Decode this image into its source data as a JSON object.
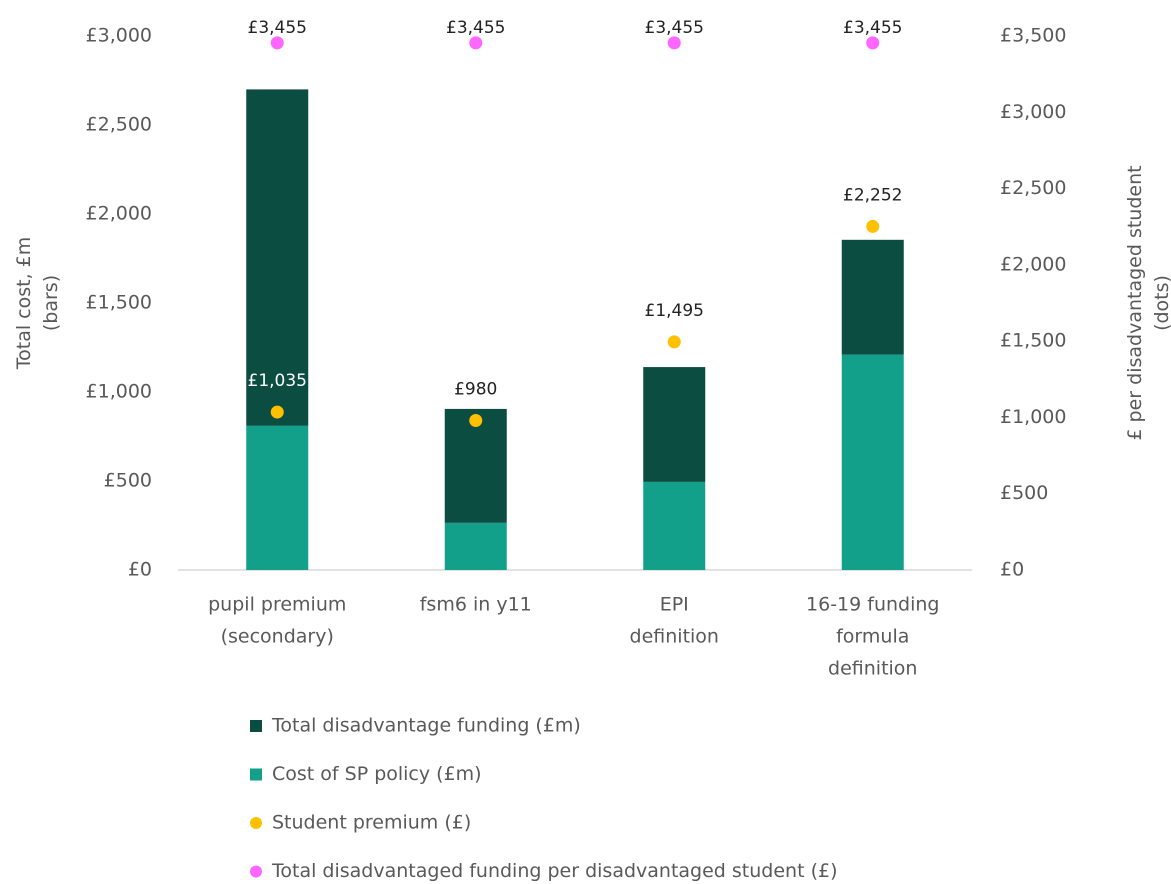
{
  "chart_data": {
    "type": "bar",
    "categories": [
      [
        "pupil premium",
        "(secondary)"
      ],
      [
        "fsm6 in y11"
      ],
      [
        "EPI",
        "definition"
      ],
      [
        "16-19 funding",
        "formula",
        "definition"
      ]
    ],
    "series": [
      {
        "name": "Total disadvantage funding (£m)",
        "color": "#0b4d41",
        "values": [
          1890,
          640,
          645,
          645
        ]
      },
      {
        "name": "Cost of SP policy (£m)",
        "color": "#12a08a",
        "values": [
          810,
          265,
          495,
          1210
        ]
      },
      {
        "name": "Student premium (£)",
        "color": "#ffc000",
        "axis": "y2",
        "values": [
          1035,
          980,
          1495,
          2252
        ],
        "value_labels": [
          "£1,035",
          "£980",
          "£1,495",
          "£2,252"
        ]
      },
      {
        "name": "Total disadvantaged funding per disadvantaged student (£)",
        "color": "#ff66ff",
        "axis": "y2",
        "values": [
          3455,
          3455,
          3455,
          3455
        ],
        "value_labels": [
          "£3,455",
          "£3,455",
          "£3,455",
          "£3,455"
        ]
      }
    ],
    "ylabel": [
      "Total cost, £m",
      "(bars)"
    ],
    "y2label": [
      "£ per disadvantaged student",
      "(dots)"
    ],
    "ylim": [
      0,
      3000
    ],
    "yticks": [
      {
        "value": 0,
        "label": "£0"
      },
      {
        "value": 500,
        "label": "£500"
      },
      {
        "value": 1000,
        "label": "£1,000"
      },
      {
        "value": 1500,
        "label": "£1,500"
      },
      {
        "value": 2000,
        "label": "£2,000"
      },
      {
        "value": 2500,
        "label": "£2,500"
      },
      {
        "value": 3000,
        "label": "£3,000"
      }
    ],
    "y2lim": [
      0,
      3500
    ],
    "y2ticks": [
      {
        "value": 0,
        "label": "£0"
      },
      {
        "value": 500,
        "label": "£500"
      },
      {
        "value": 1000,
        "label": "£1,000"
      },
      {
        "value": 1500,
        "label": "£1,500"
      },
      {
        "value": 2000,
        "label": "£2,000"
      },
      {
        "value": 2500,
        "label": "£2,500"
      },
      {
        "value": 3000,
        "label": "£3,000"
      },
      {
        "value": 3500,
        "label": "£3,500"
      }
    ],
    "legend": "bottom"
  }
}
